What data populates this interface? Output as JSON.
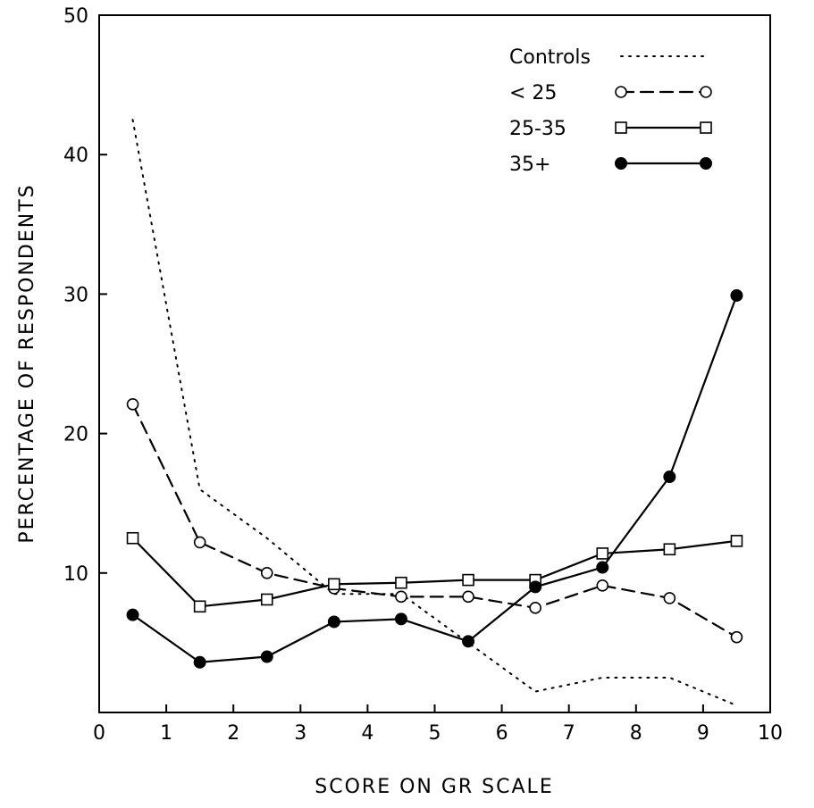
{
  "chart_data": {
    "type": "line",
    "title": "",
    "xlabel": "SCORE  ON  GR  SCALE",
    "ylabel": "PERCENTAGE OF RESPONDENTS",
    "xlim": [
      0,
      10
    ],
    "ylim": [
      0,
      50
    ],
    "xticks": [
      "0",
      "1",
      "2",
      "3",
      "4",
      "5",
      "6",
      "7",
      "8",
      "9",
      "10"
    ],
    "yticks": [
      "10",
      "20",
      "30",
      "40",
      "50"
    ],
    "yticks_values": [
      10,
      20,
      30,
      40,
      50
    ],
    "grid": false,
    "legend_position": "top-right",
    "x": [
      0.5,
      1.5,
      2.5,
      3.5,
      4.5,
      5.5,
      6.5,
      7.5,
      8.5,
      9.5
    ],
    "series": [
      {
        "name": "Controls",
        "style": "dotted",
        "marker": "none",
        "values": [
          42.5,
          16.0,
          12.5,
          8.5,
          8.5,
          5.0,
          1.5,
          2.5,
          2.5,
          0.5
        ]
      },
      {
        "name": "< 25",
        "style": "dashed",
        "marker": "open-circle",
        "values": [
          22.1,
          12.2,
          10.0,
          8.9,
          8.3,
          8.3,
          7.5,
          9.1,
          8.2,
          5.4
        ]
      },
      {
        "name": "25-35",
        "style": "solid",
        "marker": "open-square",
        "values": [
          12.5,
          7.6,
          8.1,
          9.2,
          9.3,
          9.5,
          9.5,
          11.4,
          11.7,
          12.3
        ]
      },
      {
        "name": "35+",
        "style": "solid",
        "marker": "filled-circle",
        "values": [
          7.0,
          3.6,
          4.0,
          6.5,
          6.7,
          5.1,
          9.0,
          10.4,
          16.9,
          29.9
        ]
      }
    ],
    "colors": {
      "line": "#000000",
      "background": "#ffffff"
    }
  }
}
